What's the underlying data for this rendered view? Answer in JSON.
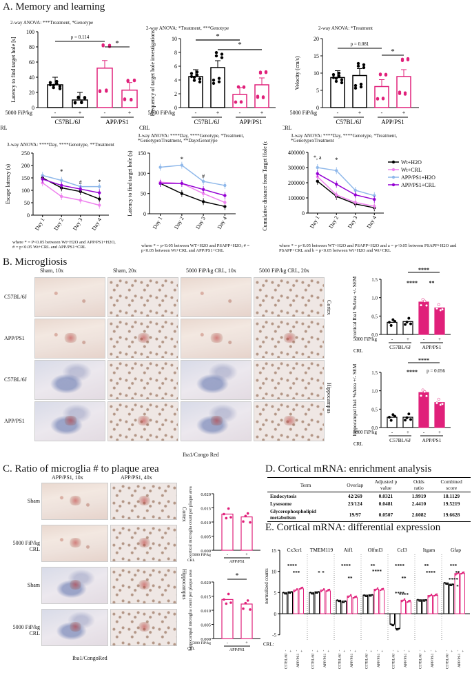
{
  "sections": {
    "A": "A. Memory and learning",
    "B": "B. Microgliosis",
    "C": "C. Ratio of microglia # to plaque area",
    "D": "D. Cortical mRNA: enrichment analysis",
    "E": "E. Cortical mRNA: differential expression"
  },
  "common": {
    "fip": "5000 FiP/kg",
    "crl": "CRL",
    "minus": "-",
    "plus": "+",
    "wt": "C57BL/6J",
    "app": "APP/PS1",
    "colors": {
      "wt": "#000000",
      "app": "#e0207a",
      "wtcrl": "#ee82ee",
      "appwater": "#8fb8ea",
      "appcrl": "#9400d3"
    }
  },
  "panelA": {
    "bar1": {
      "anova": "2-way ANOVA: ***Treatment, *Genotype",
      "ylabel": "Latency to find target hole [s]",
      "p": "p = 0.114",
      "star": "*",
      "yticks": [
        "0",
        "20",
        "40",
        "60",
        "80",
        "100"
      ],
      "means": [
        30,
        10,
        52,
        23
      ],
      "ymax": 100
    },
    "bar2": {
      "anova": "2-way ANOVA: *Treatment, ***Genotype",
      "ylabel": "Frequency of target hole investigations",
      "star1": "*",
      "star2": "*",
      "yticks": [
        "0",
        "2",
        "4",
        "6",
        "8",
        "10"
      ],
      "means": [
        4.5,
        5.8,
        1.9,
        3.3
      ],
      "ymax": 10
    },
    "bar3": {
      "anova": "2-way ANOVA: *Treatment",
      "ylabel": "Velocity (cm/s)",
      "p": "p = 0.081",
      "star": "*",
      "yticks": [
        "0",
        "5",
        "10",
        "15",
        "20"
      ],
      "means": [
        8.7,
        9.3,
        6.1,
        9.0
      ],
      "ymax": 20
    },
    "line1": {
      "anova": "3-way ANOVA: ****Day, ****Genotype, **Treatment",
      "ylabel": "Escape latency (s)",
      "yticks": [
        "0",
        "50",
        "100",
        "150",
        "200",
        "250"
      ],
      "ymax": 250,
      "days": [
        "Day 1",
        "Day 2",
        "Day 3",
        "Day 4"
      ],
      "series": [
        [
          150,
          110,
          95,
          65
        ],
        [
          130,
          75,
          60,
          40
        ],
        [
          160,
          140,
          115,
          115
        ],
        [
          145,
          120,
          105,
          90
        ]
      ],
      "marks": [
        "*",
        "#",
        "*"
      ],
      "note": "where * = P<0.05 between Wt+H2O and APP/PS1+H2O, # = p<0.05 Wt+CRL and APP/PS1+CRL"
    },
    "line2": {
      "anova": "3-way ANOVA: ****Day, ****Genotype, *Treatment, *GenotypexTreatment, **DayxGenotype",
      "ylabel": "Latency to find target hole (s)",
      "yticks": [
        "0",
        "50",
        "100",
        "150"
      ],
      "ymax": 150,
      "days": [
        "Day 1",
        "Day 2",
        "Day 3",
        "Day 4"
      ],
      "series": [
        [
          75,
          50,
          30,
          18
        ],
        [
          78,
          75,
          50,
          28
        ],
        [
          115,
          120,
          80,
          70
        ],
        [
          75,
          75,
          60,
          45
        ]
      ],
      "marks": [
        "*",
        "#"
      ],
      "note": "where * = p<0.05 between WT+H2O and PSAPP+H2O; # = p<0.05 between Wt+CRL and APP/PS1+CRL"
    },
    "line3": {
      "anova": "3-way ANOVA: ****Day, ****Genotype, *Treatment, *GenotypexTreatment",
      "ylabel": "Cumulative distance from Target Hole (cm)",
      "yticks": [
        "0",
        "100000",
        "200000",
        "300000",
        "400000"
      ],
      "ymax": 400000,
      "days": [
        "Day 1",
        "Day 2",
        "Day 3",
        "Day 4"
      ],
      "series": [
        [
          210000,
          110000,
          60000,
          35000
        ],
        [
          240000,
          120000,
          70000,
          45000
        ],
        [
          300000,
          280000,
          150000,
          115000
        ],
        [
          260000,
          190000,
          120000,
          90000
        ]
      ],
      "marks": [
        "*, a",
        "*"
      ],
      "note": "where * = p<0.05 between WT+H2O and PSAPP+H2O and a = p<0.05 between PSAPP+H2O and PSAPP+CRL and b = p<0.05 between Wt+H2O and Wt+CRL",
      "legend": [
        "Wt+H2O",
        "Wt+CRL",
        "APP/PS1+H2O",
        "APP/PS1+CRL"
      ]
    }
  },
  "panelB": {
    "cols": [
      "Sham, 10x",
      "Sham, 20x",
      "5000 FiP/kg CRL, 10x",
      "5000 FiP/kg CRL, 20x"
    ],
    "rows": [
      "C57BL/6J",
      "APP/PS1",
      "C57BL/6J",
      "APP/PS1"
    ],
    "region1": "Cortex",
    "region2": "Hippocampus",
    "caption": "Iba1/Congo Red",
    "chart1": {
      "ylabel": "cortical Iba1 %Area +/- SEM",
      "yticks": [
        "0.0",
        "0.5",
        "1.0",
        "1.5"
      ],
      "ymax": 1.5,
      "means": [
        0.33,
        0.35,
        0.88,
        0.72
      ],
      "stars": [
        "****",
        "****",
        "**"
      ]
    },
    "chart2": {
      "ylabel": "hippocampal Iba1 %Area +/- SEM",
      "yticks": [
        "0.0",
        "0.5",
        "1.0",
        "1.5"
      ],
      "ymax": 1.5,
      "means": [
        0.28,
        0.28,
        0.95,
        0.68
      ],
      "stars": [
        "****",
        "****",
        "p = 0.056"
      ]
    }
  },
  "panelC": {
    "cols": [
      "APP/PS1, 10x",
      "APP/PS1, 40x"
    ],
    "rows": [
      "Sham",
      "5000 FiP/kg CRL",
      "Sham",
      "5000 FiP/kg CRL"
    ],
    "region1": "Cortex",
    "region2": "Hippocampus",
    "caption": "Iba1/CongoRed",
    "chart1": {
      "ylabel": "cortical microglia count per plaque area",
      "yticks": [
        "0.000",
        "0.005",
        "0.010",
        "0.015",
        "0.020"
      ],
      "ymax": 0.02,
      "means": [
        0.0128,
        0.0118
      ]
    },
    "chart2": {
      "ylabel": "hippocampal microglia count per plaque area",
      "yticks": [
        "0.000",
        "0.005",
        "0.010",
        "0.015",
        "0.020"
      ],
      "ymax": 0.02,
      "means": [
        0.0138,
        0.0122
      ],
      "star": "*"
    }
  },
  "panelD": {
    "headers": [
      "Term",
      "Overlap",
      "Adjusted p value",
      "Odds ratio",
      "Combined score"
    ],
    "rows": [
      [
        "Endocytosis",
        "42/269",
        "0.0321",
        "1.9919",
        "18.1129"
      ],
      [
        "Lysosome",
        "23/124",
        "0.0481",
        "2.4410",
        "19.5219"
      ],
      [
        "Glycerophospholipid metabolism",
        "19/97",
        "0.0507",
        "2.6082",
        "19.6628"
      ]
    ]
  },
  "panelE": {
    "ylabel": "normalized counts",
    "yticks": [
      "-5",
      "0",
      "5",
      "10",
      "15"
    ],
    "genes": [
      "Cx3cr1",
      "TMEM119",
      "Aif1",
      "Olfml3",
      "Ccl3",
      "Itgam",
      "Gfap"
    ],
    "means": [
      [
        5.0,
        5.2,
        5.6,
        5.9
      ],
      [
        5.0,
        5.2,
        5.6,
        5.4
      ],
      [
        3.2,
        3.0,
        4.2,
        3.8
      ],
      [
        4.4,
        4.5,
        5.8,
        5.6
      ],
      [
        -2.5,
        -3.5,
        3.2,
        2.8
      ],
      [
        3.3,
        3.3,
        4.3,
        4.3
      ],
      [
        7.3,
        7.0,
        9.5,
        9.5
      ]
    ],
    "stars": [
      "****",
      "***",
      "*",
      "*",
      "****",
      "**",
      "**",
      "****",
      "****",
      "**",
      "****",
      "****",
      "**",
      "****",
      "***",
      "**",
      "****",
      "*"
    ],
    "crl": "CRL:"
  }
}
